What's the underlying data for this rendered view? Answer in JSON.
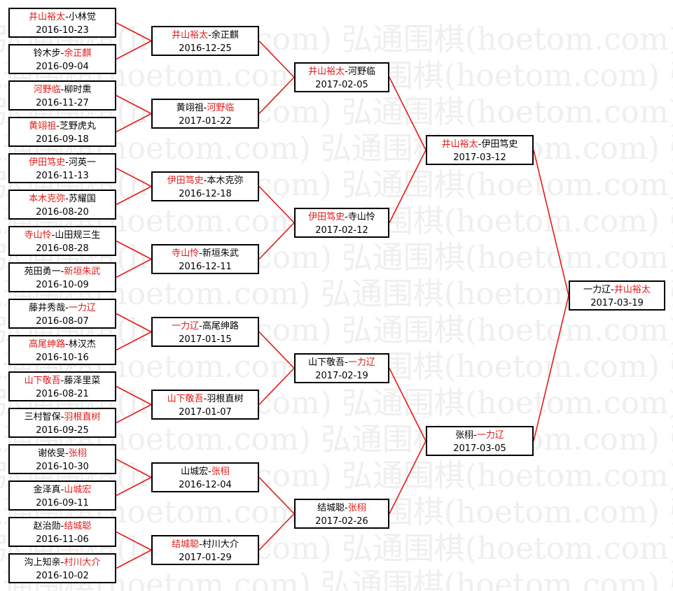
{
  "watermark": "弘通围棋(hoetom.com)",
  "colors": {
    "winner": "#e31b1b",
    "connector": "#e31b1b",
    "border": "#000000"
  },
  "rounds": [
    [
      {
        "p1": "井山裕太",
        "p2": "小林觉",
        "winner": 1,
        "date": "2016-10-23"
      },
      {
        "p1": "铃木步",
        "p2": "余正麒",
        "winner": 2,
        "date": "2016-09-04"
      },
      {
        "p1": "河野临",
        "p2": "柳时熏",
        "winner": 1,
        "date": "2016-11-27"
      },
      {
        "p1": "黄翊祖",
        "p2": "芝野虎丸",
        "winner": 1,
        "date": "2016-09-18"
      },
      {
        "p1": "伊田笃史",
        "p2": "河英一",
        "winner": 1,
        "date": "2016-11-13"
      },
      {
        "p1": "本木克弥",
        "p2": "苏耀国",
        "winner": 1,
        "date": "2016-08-20"
      },
      {
        "p1": "寺山怜",
        "p2": "山田规三生",
        "winner": 1,
        "date": "2016-08-28"
      },
      {
        "p1": "苑田勇一",
        "p2": "新垣朱武",
        "winner": 2,
        "date": "2016-10-09"
      },
      {
        "p1": "藤井秀哉",
        "p2": "一力辽",
        "winner": 2,
        "date": "2016-08-07"
      },
      {
        "p1": "高尾绅路",
        "p2": "林汉杰",
        "winner": 1,
        "date": "2016-10-16"
      },
      {
        "p1": "山下敬吾",
        "p2": "藤泽里菜",
        "winner": 1,
        "date": "2016-08-21"
      },
      {
        "p1": "三村智保",
        "p2": "羽根直树",
        "winner": 2,
        "date": "2016-09-25"
      },
      {
        "p1": "谢依旻",
        "p2": "张栩",
        "winner": 2,
        "date": "2016-10-30"
      },
      {
        "p1": "金泽真",
        "p2": "山城宏",
        "winner": 2,
        "date": "2016-09-11"
      },
      {
        "p1": "赵治勋",
        "p2": "结城聪",
        "winner": 2,
        "date": "2016-11-06"
      },
      {
        "p1": "沟上知亲",
        "p2": "村川大介",
        "winner": 2,
        "date": "2016-10-02"
      }
    ],
    [
      {
        "p1": "井山裕太",
        "p2": "余正麒",
        "winner": 1,
        "date": "2016-12-25"
      },
      {
        "p1": "黄翊祖",
        "p2": "河野临",
        "winner": 2,
        "date": "2017-01-22"
      },
      {
        "p1": "伊田笃史",
        "p2": "本木克弥",
        "winner": 1,
        "date": "2016-12-18"
      },
      {
        "p1": "寺山怜",
        "p2": "新垣朱武",
        "winner": 1,
        "date": "2016-12-11"
      },
      {
        "p1": "一力辽",
        "p2": "高尾绅路",
        "winner": 1,
        "date": "2017-01-15"
      },
      {
        "p1": "山下敬吾",
        "p2": "羽根直树",
        "winner": 1,
        "date": "2017-01-07"
      },
      {
        "p1": "山城宏",
        "p2": "张栩",
        "winner": 2,
        "date": "2016-12-04"
      },
      {
        "p1": "结城聪",
        "p2": "村川大介",
        "winner": 1,
        "date": "2017-01-29"
      }
    ],
    [
      {
        "p1": "井山裕太",
        "p2": "河野临",
        "winner": 1,
        "date": "2017-02-05"
      },
      {
        "p1": "伊田笃史",
        "p2": "寺山怜",
        "winner": 1,
        "date": "2017-02-12"
      },
      {
        "p1": "山下敬吾",
        "p2": "一力辽",
        "winner": 2,
        "date": "2017-02-19"
      },
      {
        "p1": "结城聪",
        "p2": "张栩",
        "winner": 2,
        "date": "2017-02-26"
      }
    ],
    [
      {
        "p1": "井山裕太",
        "p2": "伊田笃史",
        "winner": 1,
        "date": "2017-03-12"
      },
      {
        "p1": "张栩",
        "p2": "一力辽",
        "winner": 2,
        "date": "2017-03-05"
      }
    ],
    [
      {
        "p1": "一力辽",
        "p2": "井山裕太",
        "winner": 2,
        "date": "2017-03-19"
      }
    ]
  ]
}
